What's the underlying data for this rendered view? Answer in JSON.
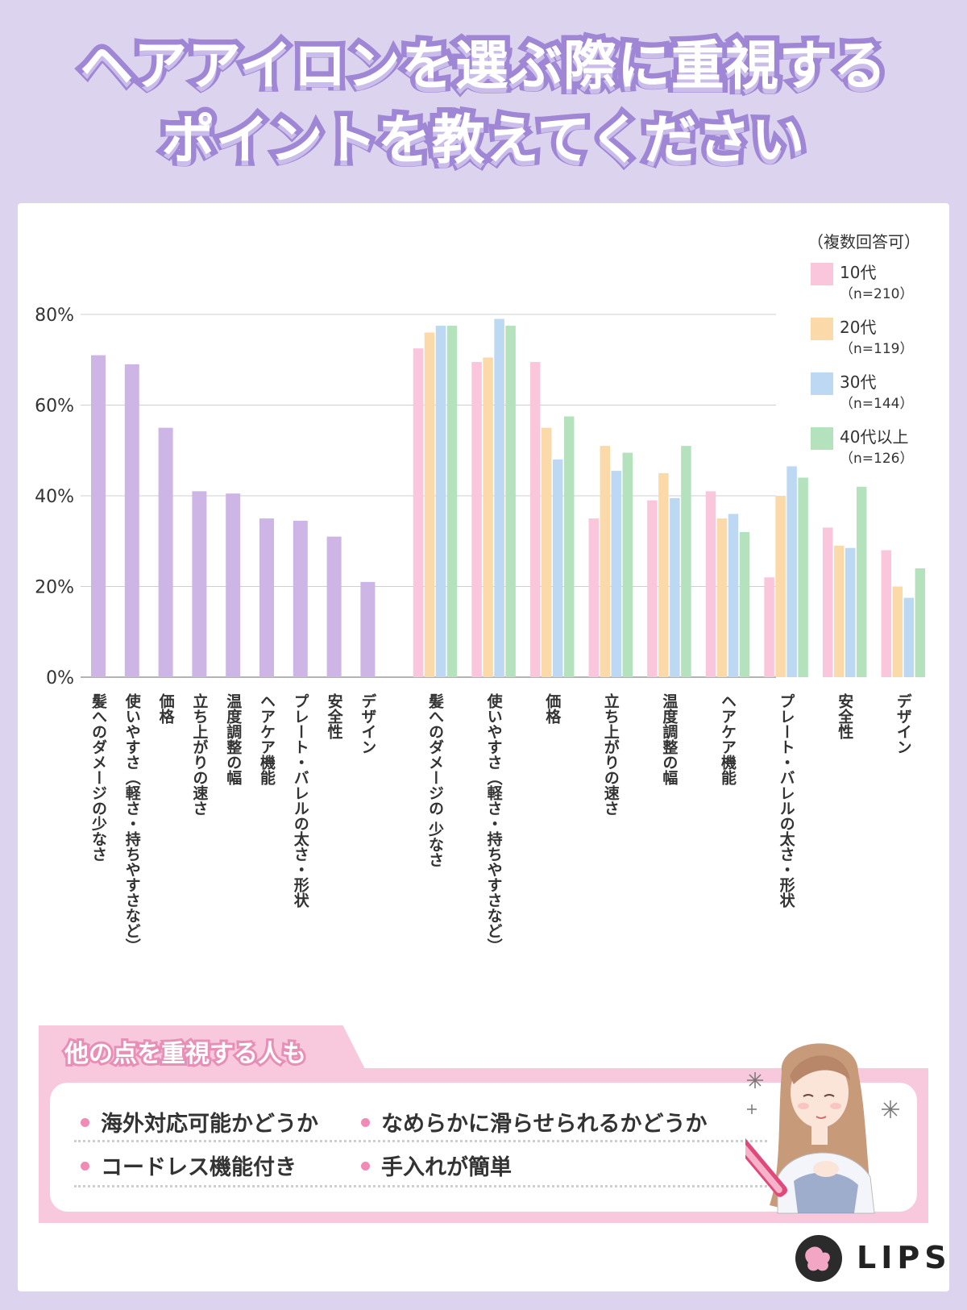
{
  "title": {
    "line1": "ヘアアイロンを選ぶ際に重視する",
    "line2": "ポイントを教えてください"
  },
  "legend": {
    "title": "（複数回答可）",
    "items": [
      {
        "name": "10代",
        "n": "（n=210）",
        "color": "#f9c6dc"
      },
      {
        "name": "20代",
        "n": "（n=119）",
        "color": "#fcd9a8"
      },
      {
        "name": "30代",
        "n": "（n=144）",
        "color": "#bcd8f2"
      },
      {
        "name": "40代以上",
        "n": "（n=126）",
        "color": "#b4e2bc"
      }
    ]
  },
  "chart_data": [
    {
      "type": "bar",
      "categories": [
        "髪へのダメージの少なさ",
        "使いやすさ（軽さ・持ちやすさなど）",
        "価格",
        "立ち上がりの速さ",
        "温度調整の幅",
        "ヘアケア機能",
        "プレート・バレルの太さ・形状",
        "安全性",
        "デザイン"
      ],
      "values": [
        71,
        69,
        55,
        41,
        40.5,
        35,
        34.5,
        31,
        21
      ],
      "color": "#cdb5e6",
      "ylim": [
        0,
        80
      ],
      "yticks": [
        "0%",
        "20%",
        "40%",
        "60%",
        "80%"
      ],
      "grid": true
    },
    {
      "type": "bar",
      "categories": [
        "髪へのダメージの 少なさ",
        "使いやすさ（軽さ・持ちやすさなど）",
        "価格",
        "立ち上がりの速さ",
        "温度調整の幅",
        "ヘアケア機能",
        "プレート・バレルの太さ・形状",
        "安全性",
        "デザイン"
      ],
      "series": [
        {
          "name": "10代",
          "values": [
            72.5,
            69.5,
            69.5,
            35,
            39,
            41,
            22,
            33,
            28
          ]
        },
        {
          "name": "20代",
          "values": [
            76,
            70.5,
            55,
            51,
            45,
            35,
            40,
            29,
            20
          ]
        },
        {
          "name": "30代",
          "values": [
            77.5,
            79,
            48,
            45.5,
            39.5,
            36,
            46.5,
            28.5,
            17.5
          ]
        },
        {
          "name": "40代以上",
          "values": [
            77.5,
            77.5,
            57.5,
            49.5,
            51,
            32,
            44,
            42,
            24
          ]
        }
      ],
      "ylim": [
        0,
        80
      ],
      "grid": true,
      "legend": "top-right"
    }
  ],
  "note": {
    "heading": "他の点を重視する人も",
    "items": [
      "海外対応可能かどうか",
      "なめらかに滑らせられるかどうか",
      "コードレス機能付き",
      "手入れが簡単"
    ]
  },
  "brand": {
    "name": "LIPS"
  }
}
